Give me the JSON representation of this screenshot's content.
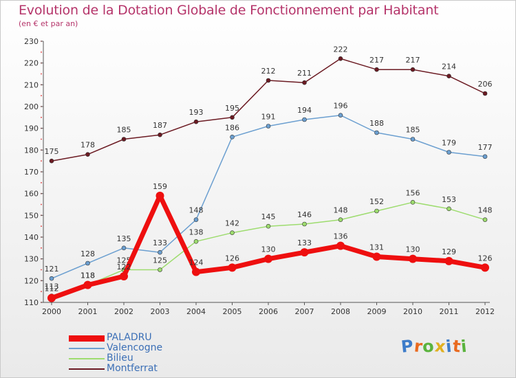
{
  "title": "Evolution de la Dotation Globale de Fonctionnement par Habitant",
  "subtitle": "(en € et par an)",
  "brand": {
    "text": "Proxiti",
    "letter_colors": [
      "#3d7cc9",
      "#e96a1f",
      "#5ab33d",
      "#e0b020",
      "#3d7cc9",
      "#e96a1f",
      "#5ab33d"
    ]
  },
  "chart_data": {
    "type": "line",
    "categories": [
      "2000",
      "2001",
      "2002",
      "2003",
      "2004",
      "2005",
      "2006",
      "2007",
      "2008",
      "2009",
      "2010",
      "2011",
      "2012"
    ],
    "ylim": [
      110,
      230
    ],
    "yticks": [
      110,
      120,
      130,
      140,
      150,
      160,
      170,
      180,
      190,
      200,
      210,
      220,
      230
    ],
    "grid": false,
    "legend_position": "bottom-left",
    "series": [
      {
        "name": "Montferrat",
        "color": "#6b1a22",
        "emphasis": false,
        "labels_shown": true,
        "values": [
          175,
          178,
          185,
          187,
          193,
          195,
          212,
          211,
          222,
          217,
          217,
          214,
          206
        ]
      },
      {
        "name": "Valencogne",
        "color": "#6b9fd0",
        "emphasis": false,
        "labels_shown": true,
        "values": [
          121,
          128,
          135,
          133,
          148,
          186,
          191,
          194,
          196,
          188,
          185,
          179,
          177
        ]
      },
      {
        "name": "Bilieu",
        "color": "#9ddc6e",
        "emphasis": false,
        "labels_shown": true,
        "values": [
          113,
          118,
          125,
          125,
          138,
          142,
          145,
          146,
          148,
          152,
          156,
          153,
          148
        ]
      },
      {
        "name": "PALADRU",
        "color": "#ee0f0f",
        "emphasis": true,
        "labels_shown": true,
        "values": [
          112,
          118,
          122,
          159,
          124,
          126,
          130,
          133,
          136,
          131,
          130,
          129,
          126
        ]
      }
    ],
    "legend_order": [
      "PALADRU",
      "Valencogne",
      "Bilieu",
      "Montferrat"
    ]
  }
}
